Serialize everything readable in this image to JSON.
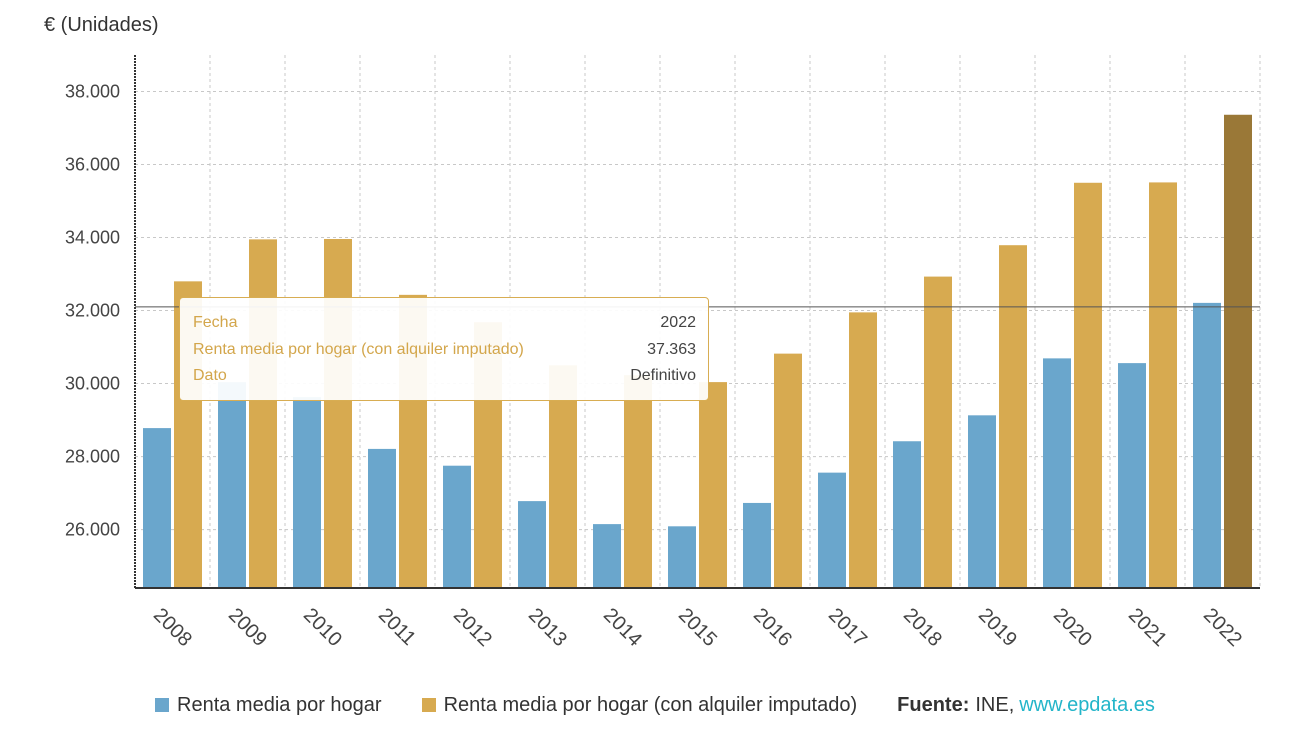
{
  "chart_data": {
    "type": "bar",
    "unit_label": "€ (Unidades)",
    "categories": [
      "2008",
      "2009",
      "2010",
      "2011",
      "2012",
      "2013",
      "2014",
      "2015",
      "2016",
      "2017",
      "2018",
      "2019",
      "2020",
      "2021",
      "2022"
    ],
    "series": [
      {
        "name": "Renta media por hogar",
        "color": "#6aa6cc",
        "values": [
          28780,
          30040,
          29630,
          28210,
          27750,
          26780,
          26150,
          26090,
          26730,
          27560,
          28420,
          29130,
          30690,
          30560,
          32210
        ]
      },
      {
        "name": "Renta media por hogar (con alquiler imputado)",
        "color": "#d7aa50",
        "highlight_color": "#9a7837",
        "values": [
          32800,
          33950,
          33960,
          32430,
          31680,
          30500,
          30230,
          30040,
          30820,
          31950,
          32930,
          33790,
          35500,
          35510,
          37363
        ]
      }
    ],
    "ylim": [
      24400,
      39000
    ],
    "yticks": [
      26000,
      28000,
      30000,
      32000,
      34000,
      36000,
      38000
    ],
    "ytick_labels": [
      "26.000",
      "28.000",
      "30.000",
      "32.000",
      "34.000",
      "36.000",
      "38.000"
    ],
    "crosshair_value": 32100,
    "highlighted": {
      "series": 1,
      "index": 14
    },
    "grid": true
  },
  "tooltip": {
    "rows": [
      {
        "key": "Fecha",
        "value": "2022"
      },
      {
        "key": "Renta media por hogar (con alquiler imputado)",
        "value": "37.363"
      },
      {
        "key": "Dato",
        "value": "Definitivo"
      }
    ]
  },
  "legend": {
    "items": [
      {
        "label": "Renta media por hogar",
        "color": "#6aa6cc"
      },
      {
        "label": "Renta media por hogar (con alquiler imputado)",
        "color": "#d7aa50"
      }
    ]
  },
  "source": {
    "label": "Fuente:",
    "text": "INE,",
    "link": "www.epdata.es"
  }
}
